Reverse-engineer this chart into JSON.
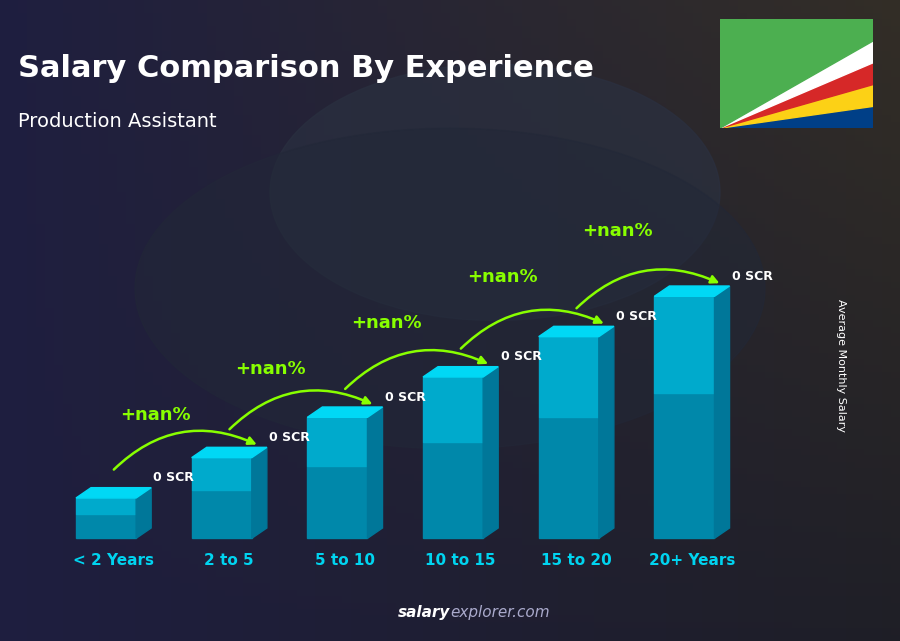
{
  "title": "Salary Comparison By Experience",
  "subtitle": "Production Assistant",
  "categories": [
    "< 2 Years",
    "2 to 5",
    "5 to 10",
    "10 to 15",
    "15 to 20",
    "20+ Years"
  ],
  "bar_heights": [
    1,
    2,
    3,
    4,
    5,
    6
  ],
  "value_labels": [
    "0 SCR",
    "0 SCR",
    "0 SCR",
    "0 SCR",
    "0 SCR",
    "0 SCR"
  ],
  "pct_labels": [
    "+nan%",
    "+nan%",
    "+nan%",
    "+nan%",
    "+nan%"
  ],
  "bar_front": "#00aacc",
  "bar_top": "#00d8f5",
  "bar_side": "#007799",
  "bar_bottom_grad": "#005577",
  "title_color": "#ffffff",
  "subtitle_color": "#ffffff",
  "cat_color": "#00d4f0",
  "value_color": "#ffffff",
  "pct_color": "#88ff00",
  "arrow_color": "#88ff00",
  "watermark_salary": "salary",
  "watermark_explorer": "explorer",
  "watermark_dot_com": ".com",
  "watermark_color_main": "#aaaadd",
  "watermark_bold_color": "#ffffff",
  "ylabel_text": "Average Monthly Salary",
  "bg_color": "#1c2333",
  "flag_colors": [
    "#003F87",
    "#FCD116",
    "#D62828",
    "#ffffff",
    "#4CAF50"
  ],
  "fig_width": 9.0,
  "fig_height": 6.41,
  "title_fontsize": 22,
  "subtitle_fontsize": 14,
  "cat_fontsize": 11,
  "val_fontsize": 9,
  "pct_fontsize": 13,
  "watermark_fontsize": 11
}
